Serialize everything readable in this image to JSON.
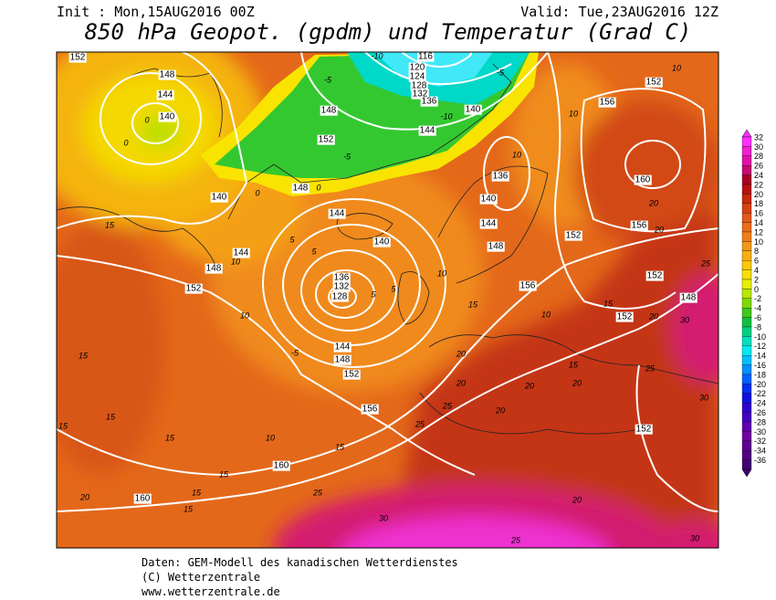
{
  "header": {
    "init": "Init : Mon,15AUG2016 00Z",
    "valid": "Valid: Tue,23AUG2016 12Z",
    "title": "850 hPa Geopot. (gpdm) und Temperatur (Grad C)"
  },
  "map": {
    "geopotential_labels": [
      152,
      148,
      144,
      140,
      116,
      120,
      124,
      128,
      132,
      136,
      140,
      144,
      148,
      152,
      148,
      144,
      140,
      136,
      132,
      128,
      144,
      148,
      152,
      156,
      160,
      160,
      152,
      148,
      144,
      140,
      156,
      152,
      160,
      156,
      152,
      152,
      152,
      148,
      140,
      144,
      148,
      136,
      156,
      152
    ],
    "temperature_labels": [
      -10,
      -5,
      -5,
      -5,
      -10,
      0,
      0,
      0,
      0,
      5,
      5,
      5,
      5,
      -5,
      10,
      10,
      15,
      15,
      15,
      15,
      15,
      15,
      15,
      15,
      10,
      15,
      20,
      25,
      25,
      25,
      20,
      20,
      20,
      20,
      15,
      10,
      15,
      20,
      25,
      30,
      25,
      30,
      20,
      25,
      30,
      30,
      10,
      15,
      20,
      20,
      20,
      10,
      10,
      10
    ]
  },
  "colorbar": {
    "values": [
      32,
      30,
      28,
      26,
      24,
      22,
      20,
      18,
      16,
      14,
      12,
      10,
      8,
      6,
      4,
      2,
      0,
      -2,
      -4,
      -6,
      -8,
      -10,
      -12,
      -14,
      -16,
      -18,
      -20,
      -22,
      -24,
      -26,
      -28,
      -30,
      -32,
      -34,
      -36
    ],
    "colors": [
      "#ff30ff",
      "#f020d0",
      "#e010a8",
      "#c80870",
      "#a80020",
      "#b81010",
      "#c82808",
      "#d84010",
      "#e45818",
      "#ec6c18",
      "#f08018",
      "#f49818",
      "#f8b010",
      "#fcc808",
      "#f8e000",
      "#e8f000",
      "#b8e800",
      "#80d800",
      "#40c820",
      "#10c040",
      "#00d080",
      "#00e0c0",
      "#00e8f0",
      "#00c0ff",
      "#0090ff",
      "#0060ff",
      "#0030f0",
      "#1010e0",
      "#3000d0",
      "#4800c0",
      "#6000b0",
      "#7000a0",
      "#600090",
      "#500080",
      "#400070"
    ]
  },
  "footer": {
    "line1": "Daten: GEM-Modell des kanadischen Wetterdienstes",
    "line2": "(C) Wetterzentrale",
    "line3": "www.wetterzentrale.de"
  }
}
